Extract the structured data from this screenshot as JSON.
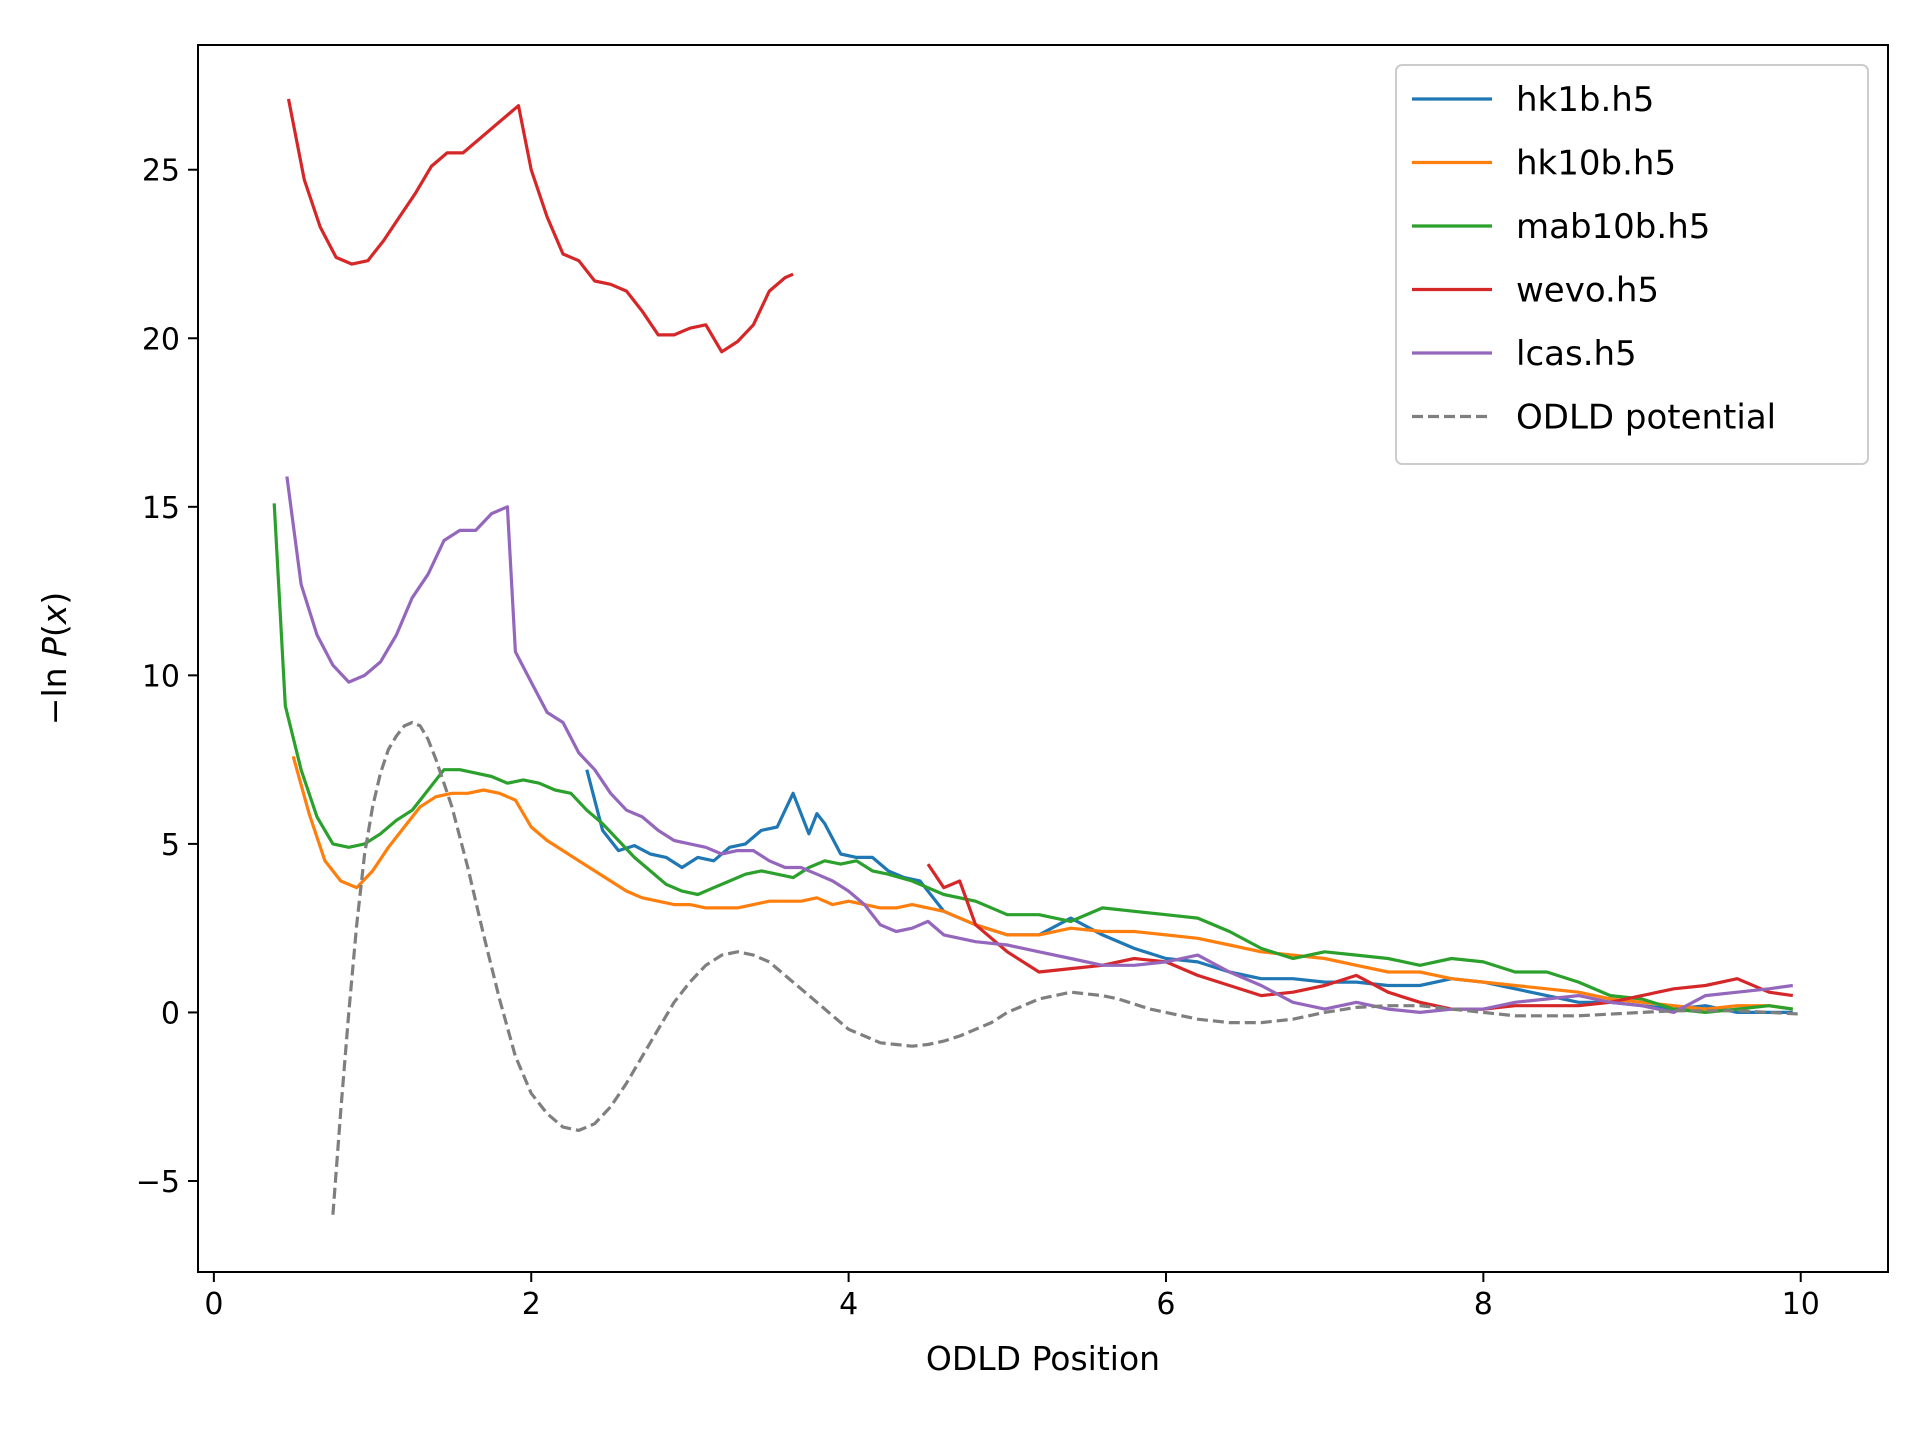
{
  "chart_data": {
    "type": "line",
    "xlabel": "ODLD Position",
    "ylabel": "−ln P(x)",
    "xlim": [
      -0.1,
      10.55
    ],
    "ylim": [
      -7.7,
      28.7
    ],
    "xticks": [
      0,
      2,
      4,
      6,
      8,
      10
    ],
    "yticks": [
      -5,
      0,
      5,
      10,
      15,
      20,
      25
    ],
    "xtick_labels": [
      "0",
      "2",
      "4",
      "6",
      "8",
      "10"
    ],
    "ytick_labels": [
      "−5",
      "0",
      "5",
      "10",
      "15",
      "20",
      "25"
    ],
    "grid": false,
    "legend_position": "top-right",
    "series": [
      {
        "name": "hk1b.h5",
        "color": "#1f77b4",
        "style": "solid",
        "x": [
          2.35,
          2.45,
          2.55,
          2.65,
          2.75,
          2.85,
          2.95,
          3.05,
          3.15,
          3.25,
          3.35,
          3.45,
          3.55,
          3.6,
          3.65,
          3.75,
          3.8,
          3.85,
          3.95,
          4.05,
          4.15,
          4.25,
          4.35,
          4.45,
          4.6,
          4.8,
          5.0,
          5.2,
          5.4,
          5.6,
          5.8,
          6.0,
          6.2,
          6.4,
          6.6,
          6.8,
          7.0,
          7.2,
          7.4,
          7.6,
          7.8,
          8.0,
          8.2,
          8.4,
          8.6,
          8.8,
          9.0,
          9.2,
          9.4,
          9.6,
          9.8,
          9.95
        ],
        "y": [
          7.2,
          5.4,
          4.8,
          4.95,
          4.7,
          4.6,
          4.3,
          4.6,
          4.5,
          4.9,
          5.0,
          5.4,
          5.5,
          6.0,
          6.5,
          5.3,
          5.9,
          5.6,
          4.7,
          4.6,
          4.6,
          4.2,
          4.0,
          3.9,
          3.0,
          2.6,
          2.3,
          2.3,
          2.8,
          2.3,
          1.9,
          1.6,
          1.5,
          1.2,
          1.0,
          1.0,
          0.9,
          0.9,
          0.8,
          0.8,
          1.0,
          0.9,
          0.7,
          0.5,
          0.3,
          0.3,
          0.2,
          0.1,
          0.2,
          0.0,
          0.0,
          0.0
        ]
      },
      {
        "name": "hk10b.h5",
        "color": "#ff7f0e",
        "style": "solid",
        "x": [
          0.5,
          0.6,
          0.7,
          0.8,
          0.9,
          1.0,
          1.1,
          1.2,
          1.3,
          1.4,
          1.5,
          1.6,
          1.7,
          1.8,
          1.9,
          2.0,
          2.1,
          2.2,
          2.3,
          2.4,
          2.5,
          2.6,
          2.7,
          2.8,
          2.9,
          3.0,
          3.1,
          3.2,
          3.3,
          3.4,
          3.5,
          3.6,
          3.7,
          3.8,
          3.9,
          4.0,
          4.1,
          4.2,
          4.3,
          4.4,
          4.6,
          4.8,
          5.0,
          5.2,
          5.4,
          5.6,
          5.8,
          6.0,
          6.2,
          6.4,
          6.6,
          6.8,
          7.0,
          7.2,
          7.4,
          7.6,
          7.8,
          8.0,
          8.2,
          8.4,
          8.6,
          8.8,
          9.0,
          9.2,
          9.4,
          9.6,
          9.8,
          9.95
        ],
        "y": [
          7.6,
          5.9,
          4.5,
          3.9,
          3.7,
          4.2,
          4.9,
          5.5,
          6.1,
          6.4,
          6.5,
          6.5,
          6.6,
          6.5,
          6.3,
          5.5,
          5.1,
          4.8,
          4.5,
          4.2,
          3.9,
          3.6,
          3.4,
          3.3,
          3.2,
          3.2,
          3.1,
          3.1,
          3.1,
          3.2,
          3.3,
          3.3,
          3.3,
          3.4,
          3.2,
          3.3,
          3.2,
          3.1,
          3.1,
          3.2,
          3.0,
          2.6,
          2.3,
          2.3,
          2.5,
          2.4,
          2.4,
          2.3,
          2.2,
          2.0,
          1.8,
          1.7,
          1.6,
          1.4,
          1.2,
          1.2,
          1.0,
          0.9,
          0.8,
          0.7,
          0.6,
          0.4,
          0.3,
          0.2,
          0.1,
          0.2,
          0.2,
          0.1
        ]
      },
      {
        "name": "mab10b.h5",
        "color": "#2ca02c",
        "style": "solid",
        "x": [
          0.38,
          0.45,
          0.55,
          0.65,
          0.75,
          0.85,
          0.95,
          1.05,
          1.15,
          1.25,
          1.35,
          1.45,
          1.55,
          1.65,
          1.75,
          1.85,
          1.95,
          2.05,
          2.15,
          2.25,
          2.35,
          2.45,
          2.55,
          2.65,
          2.75,
          2.85,
          2.95,
          3.05,
          3.15,
          3.25,
          3.35,
          3.45,
          3.55,
          3.65,
          3.75,
          3.85,
          3.95,
          4.05,
          4.15,
          4.25,
          4.4,
          4.6,
          4.8,
          5.0,
          5.2,
          5.4,
          5.6,
          5.8,
          6.0,
          6.2,
          6.4,
          6.6,
          6.8,
          7.0,
          7.2,
          7.4,
          7.6,
          7.8,
          8.0,
          8.2,
          8.4,
          8.6,
          8.8,
          9.0,
          9.2,
          9.4,
          9.6,
          9.8,
          9.95
        ],
        "y": [
          15.1,
          9.1,
          7.2,
          5.8,
          5.0,
          4.9,
          5.0,
          5.3,
          5.7,
          6.0,
          6.6,
          7.2,
          7.2,
          7.1,
          7.0,
          6.8,
          6.9,
          6.8,
          6.6,
          6.5,
          6.0,
          5.6,
          5.1,
          4.6,
          4.2,
          3.8,
          3.6,
          3.5,
          3.7,
          3.9,
          4.1,
          4.2,
          4.1,
          4.0,
          4.3,
          4.5,
          4.4,
          4.5,
          4.2,
          4.1,
          3.9,
          3.5,
          3.3,
          2.9,
          2.9,
          2.7,
          3.1,
          3.0,
          2.9,
          2.8,
          2.4,
          1.9,
          1.6,
          1.8,
          1.7,
          1.6,
          1.4,
          1.6,
          1.5,
          1.2,
          1.2,
          0.9,
          0.5,
          0.4,
          0.1,
          0.0,
          0.1,
          0.2,
          0.1
        ]
      },
      {
        "name": "wevo.h5",
        "color": "#d62728",
        "style": "solid",
        "segments": [
          {
            "x": [
              0.47,
              0.57,
              0.67,
              0.77,
              0.87,
              0.97,
              1.07,
              1.17,
              1.27,
              1.37,
              1.47,
              1.57,
              1.67,
              1.77,
              1.87,
              1.92,
              2.0,
              2.1,
              2.2,
              2.3,
              2.4,
              2.5,
              2.6,
              2.7,
              2.8,
              2.9,
              3.0,
              3.1,
              3.2,
              3.3,
              3.4,
              3.5,
              3.6,
              3.65
            ],
            "y": [
              27.1,
              24.7,
              23.3,
              22.4,
              22.2,
              22.3,
              22.9,
              23.6,
              24.3,
              25.1,
              25.5,
              25.5,
              25.9,
              26.3,
              26.7,
              26.9,
              25.0,
              23.6,
              22.5,
              22.3,
              21.7,
              21.6,
              21.4,
              20.8,
              20.1,
              20.1,
              20.3,
              20.4,
              19.6,
              19.9,
              20.4,
              21.4,
              21.8,
              21.9
            ]
          },
          {
            "x": [
              4.5,
              4.6,
              4.7,
              4.8,
              5.0,
              5.2,
              5.4,
              5.6,
              5.8,
              6.0,
              6.2,
              6.4,
              6.6,
              6.8,
              7.0,
              7.2,
              7.4,
              7.6,
              7.8,
              8.0,
              8.2,
              8.4,
              8.6,
              8.8,
              9.0,
              9.2,
              9.4,
              9.6,
              9.8,
              9.95
            ],
            "y": [
              4.4,
              3.7,
              3.9,
              2.6,
              1.8,
              1.2,
              1.3,
              1.4,
              1.6,
              1.5,
              1.1,
              0.8,
              0.5,
              0.6,
              0.8,
              1.1,
              0.6,
              0.3,
              0.1,
              0.1,
              0.2,
              0.2,
              0.2,
              0.3,
              0.5,
              0.7,
              0.8,
              1.0,
              0.6,
              0.5
            ]
          }
        ]
      },
      {
        "name": "lcas.h5",
        "color": "#9467bd",
        "style": "solid",
        "x": [
          0.46,
          0.55,
          0.65,
          0.75,
          0.85,
          0.95,
          1.05,
          1.15,
          1.25,
          1.35,
          1.45,
          1.55,
          1.65,
          1.75,
          1.85,
          1.9,
          2.0,
          2.1,
          2.2,
          2.3,
          2.4,
          2.5,
          2.6,
          2.7,
          2.8,
          2.9,
          3.0,
          3.1,
          3.2,
          3.3,
          3.4,
          3.5,
          3.6,
          3.7,
          3.8,
          3.9,
          4.0,
          4.1,
          4.2,
          4.3,
          4.4,
          4.5,
          4.6,
          4.8,
          5.0,
          5.2,
          5.4,
          5.6,
          5.8,
          6.0,
          6.2,
          6.4,
          6.6,
          6.8,
          7.0,
          7.2,
          7.4,
          7.6,
          7.8,
          8.0,
          8.2,
          8.4,
          8.6,
          8.8,
          9.0,
          9.2,
          9.4,
          9.6,
          9.8,
          9.95
        ],
        "y": [
          15.9,
          12.7,
          11.2,
          10.3,
          9.8,
          10.0,
          10.4,
          11.2,
          12.3,
          13.0,
          14.0,
          14.3,
          14.3,
          14.8,
          15.0,
          10.7,
          9.8,
          8.9,
          8.6,
          7.7,
          7.2,
          6.5,
          6.0,
          5.8,
          5.4,
          5.1,
          5.0,
          4.9,
          4.7,
          4.8,
          4.8,
          4.5,
          4.3,
          4.3,
          4.1,
          3.9,
          3.6,
          3.2,
          2.6,
          2.4,
          2.5,
          2.7,
          2.3,
          2.1,
          2.0,
          1.8,
          1.6,
          1.4,
          1.4,
          1.5,
          1.7,
          1.2,
          0.8,
          0.3,
          0.1,
          0.3,
          0.1,
          0.0,
          0.1,
          0.1,
          0.3,
          0.4,
          0.5,
          0.3,
          0.2,
          0.0,
          0.5,
          0.6,
          0.7,
          0.8
        ]
      },
      {
        "name": "ODLD potential",
        "color": "#7f7f7f",
        "style": "dashed",
        "x": [
          0.75,
          0.8,
          0.85,
          0.9,
          0.95,
          1.0,
          1.05,
          1.1,
          1.15,
          1.2,
          1.25,
          1.3,
          1.35,
          1.4,
          1.5,
          1.6,
          1.7,
          1.8,
          1.9,
          2.0,
          2.1,
          2.2,
          2.3,
          2.35,
          2.4,
          2.5,
          2.6,
          2.7,
          2.8,
          2.9,
          3.0,
          3.1,
          3.2,
          3.3,
          3.4,
          3.5,
          3.6,
          3.7,
          3.8,
          3.9,
          4.0,
          4.1,
          4.2,
          4.3,
          4.4,
          4.5,
          4.6,
          4.7,
          4.8,
          4.9,
          5.0,
          5.1,
          5.2,
          5.3,
          5.4,
          5.5,
          5.6,
          5.7,
          5.8,
          5.9,
          6.0,
          6.2,
          6.4,
          6.6,
          6.8,
          7.0,
          7.2,
          7.4,
          7.6,
          7.8,
          8.0,
          8.2,
          8.4,
          8.6,
          8.8,
          9.0,
          9.2,
          9.4,
          9.6,
          9.8,
          10.0
        ],
        "y": [
          -6.0,
          -2.9,
          0.0,
          2.6,
          4.7,
          6.1,
          7.1,
          7.8,
          8.2,
          8.5,
          8.6,
          8.5,
          8.1,
          7.5,
          6.1,
          4.3,
          2.3,
          0.4,
          -1.3,
          -2.4,
          -3.0,
          -3.4,
          -3.5,
          -3.4,
          -3.3,
          -2.8,
          -2.1,
          -1.3,
          -0.5,
          0.3,
          0.9,
          1.4,
          1.7,
          1.8,
          1.7,
          1.5,
          1.1,
          0.7,
          0.3,
          -0.1,
          -0.5,
          -0.7,
          -0.9,
          -0.95,
          -1.0,
          -0.95,
          -0.85,
          -0.7,
          -0.5,
          -0.3,
          0.0,
          0.2,
          0.4,
          0.5,
          0.6,
          0.55,
          0.5,
          0.4,
          0.25,
          0.1,
          0.0,
          -0.2,
          -0.3,
          -0.3,
          -0.2,
          0.0,
          0.15,
          0.2,
          0.2,
          0.1,
          0.0,
          -0.1,
          -0.1,
          -0.1,
          -0.05,
          0.0,
          0.05,
          0.05,
          0.05,
          0.0,
          -0.05
        ]
      }
    ]
  }
}
